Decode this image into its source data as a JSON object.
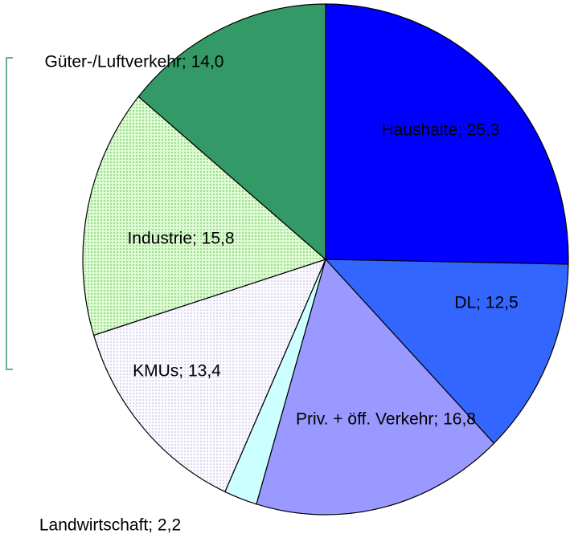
{
  "chart_data": {
    "type": "pie",
    "values": [
      25.3,
      12.5,
      16.8,
      2.2,
      13.4,
      15.8,
      14.0
    ],
    "value_labels": [
      "Haushalte; 25,3",
      "DL; 12,5",
      "Priv. + öff. Verkehr; 16,8",
      "Landwirtschaft; 2,2",
      "KMUs; 13,4",
      "Industrie; 15,8",
      "Güter-/Luftverkehr; 14,0"
    ],
    "colors": [
      "#0000ff",
      "#3366ff",
      "#9999ff",
      "#ccffff",
      "#f2f0fc",
      "#c8f5b8",
      "#339966"
    ]
  }
}
